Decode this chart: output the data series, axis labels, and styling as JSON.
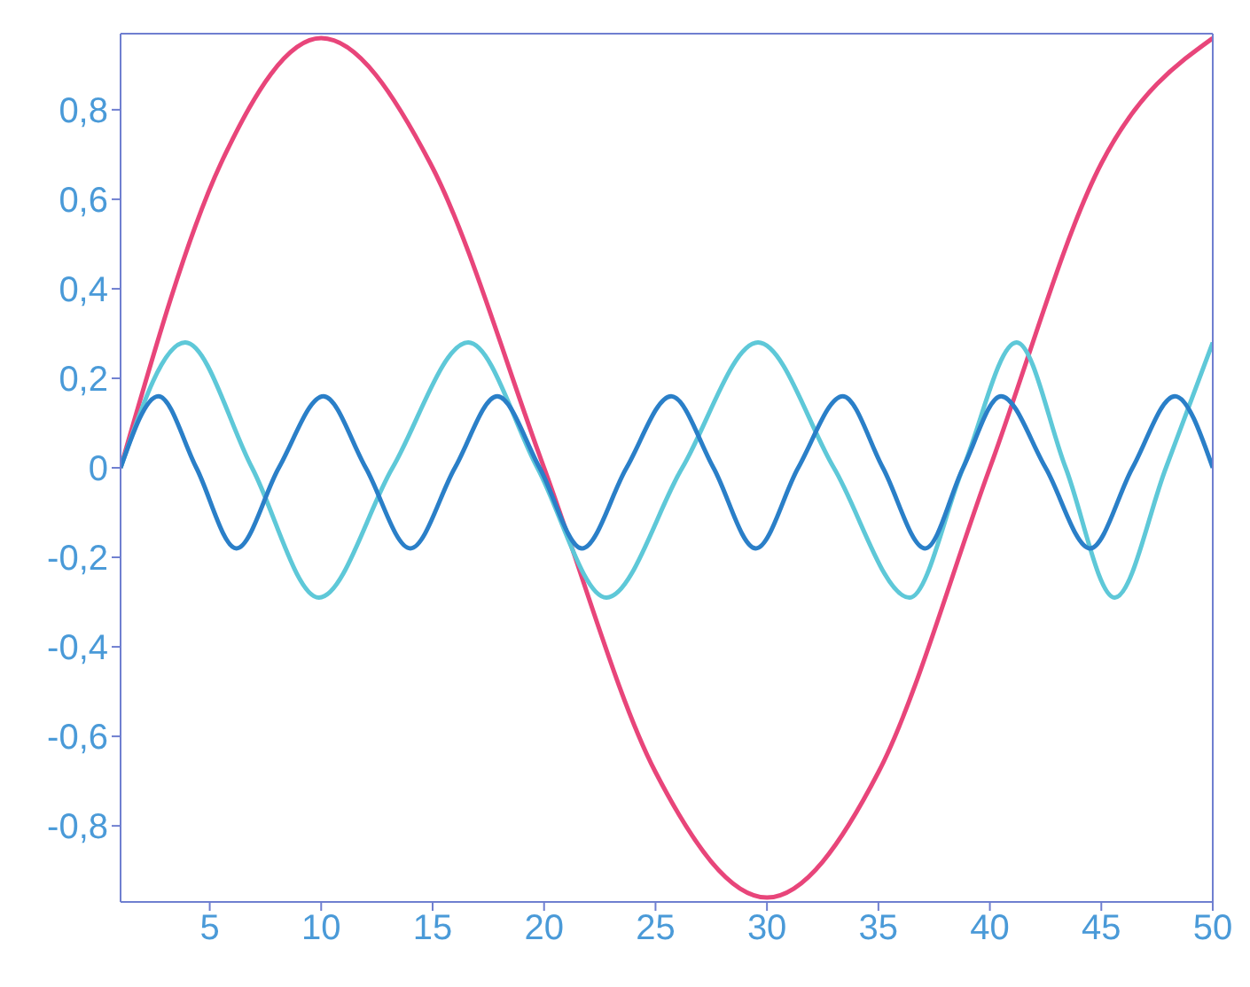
{
  "chart_data": {
    "type": "line",
    "xlim": [
      1,
      50
    ],
    "ylim": [
      -0.97,
      0.97
    ],
    "xticks": [
      5,
      10,
      15,
      20,
      25,
      30,
      35,
      40,
      45,
      50
    ],
    "yticks": [
      {
        "value": -0.8,
        "label": "-0,8"
      },
      {
        "value": -0.6,
        "label": "-0,6"
      },
      {
        "value": -0.4,
        "label": "-0,4"
      },
      {
        "value": -0.2,
        "label": "-0,2"
      },
      0,
      {
        "value": 0.2,
        "label": "0,2"
      },
      {
        "value": 0.4,
        "label": "0,4"
      },
      {
        "value": 0.6,
        "label": "0,6"
      },
      {
        "value": 0.8,
        "label": "0,8"
      }
    ],
    "marker": "none",
    "series": [
      {
        "color": "#e8457a",
        "x": [
          1,
          5.5,
          10,
          14.9,
          20,
          25,
          30,
          35,
          40,
          45,
          50
        ],
        "values": [
          0,
          0.68,
          0.96,
          0.68,
          0,
          -0.68,
          -0.96,
          -0.68,
          0,
          0.68,
          0.96
        ]
      },
      {
        "color": "#5ec8d8",
        "x": [
          1,
          3.9,
          6.9,
          9.9,
          13.2,
          16.6,
          19.7,
          22.8,
          26.2,
          29.6,
          33,
          36.4,
          38.8,
          41.2,
          43.4,
          45.6,
          47.9,
          50
        ],
        "values": [
          0,
          0.28,
          0,
          -0.29,
          0,
          0.28,
          0,
          -0.29,
          0,
          0.28,
          0,
          -0.29,
          0,
          0.28,
          0,
          -0.29,
          0,
          0.28
        ]
      },
      {
        "color": "#2a7fc8",
        "x": [
          1,
          2.7,
          4.4,
          6.2,
          8.1,
          10.1,
          12,
          14,
          16,
          17.9,
          19.8,
          21.7,
          23.7,
          25.7,
          27.6,
          29.5,
          31.4,
          33.4,
          35.2,
          37.1,
          38.8,
          40.5,
          42.5,
          44.5,
          46.4,
          48.3,
          50
        ],
        "values": [
          0,
          0.16,
          0,
          -0.18,
          0,
          0.16,
          0,
          -0.18,
          0,
          0.16,
          0,
          -0.18,
          0,
          0.16,
          0,
          -0.18,
          0,
          0.16,
          0,
          -0.18,
          0,
          0.16,
          0,
          -0.18,
          0,
          0.16,
          0
        ]
      }
    ]
  }
}
